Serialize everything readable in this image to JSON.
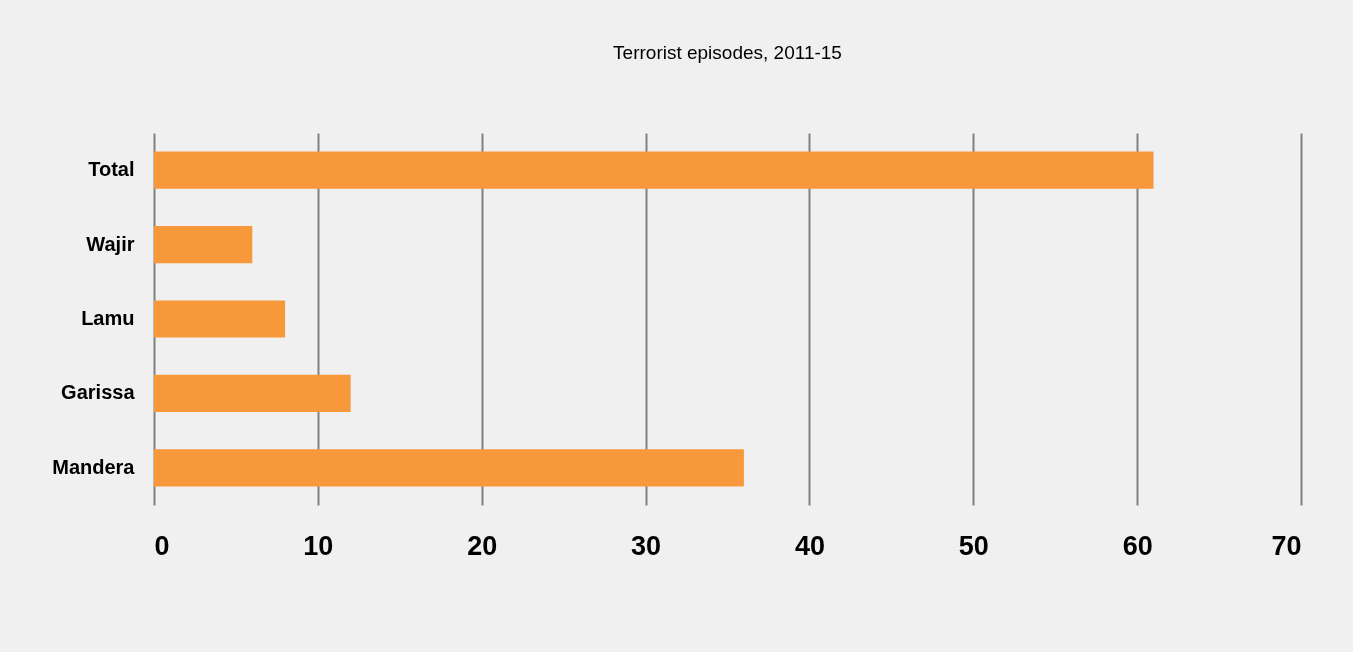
{
  "chart_data": {
    "type": "bar",
    "orientation": "horizontal",
    "title": "Terrorist episodes, 2011-15",
    "categories": [
      "Total",
      "Wajir",
      "Lamu",
      "Garissa",
      "Mandera"
    ],
    "values": [
      61,
      6,
      8,
      12,
      36
    ],
    "color": "#f7993a",
    "xlim": [
      0,
      70
    ],
    "xticks": [
      0,
      10,
      20,
      30,
      40,
      50,
      60,
      70
    ],
    "grid": "x"
  }
}
